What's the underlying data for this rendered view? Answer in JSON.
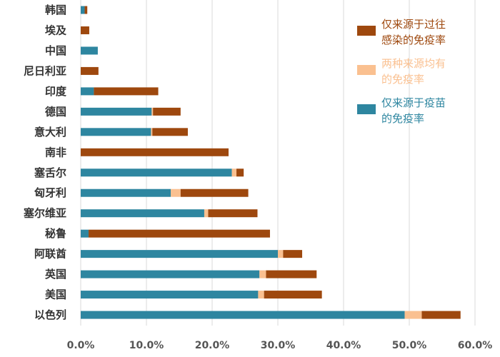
{
  "chart_data": {
    "type": "bar",
    "orientation": "horizontal",
    "stacked": true,
    "categories": [
      "韩国",
      "埃及",
      "中国",
      "尼日利亚",
      "印度",
      "德国",
      "意大利",
      "南非",
      "塞舌尔",
      "匈牙利",
      "塞尔维亚",
      "秘鲁",
      "阿联酋",
      "英国",
      "美国",
      "以色列"
    ],
    "series": [
      {
        "name": "仅来源于疫苗的免疫率",
        "color": "#2e86a0",
        "values": [
          0.6,
          0.0,
          2.6,
          0.0,
          2.0,
          10.8,
          10.7,
          0.0,
          23.0,
          13.7,
          18.8,
          1.2,
          30.0,
          27.2,
          27.0,
          49.3
        ]
      },
      {
        "name": "两种来源均有的免疫率",
        "color": "#fac090",
        "values": [
          0.0,
          0.0,
          0.0,
          0.0,
          0.0,
          0.2,
          0.2,
          0.0,
          0.7,
          1.5,
          0.6,
          0.0,
          0.8,
          1.0,
          0.9,
          2.6
        ]
      },
      {
        "name": "仅来源于过往感染的免疫率",
        "color": "#9e480e",
        "values": [
          0.4,
          1.3,
          0.0,
          2.7,
          9.8,
          4.2,
          5.4,
          22.5,
          1.1,
          10.3,
          7.5,
          27.6,
          2.9,
          7.7,
          8.8,
          5.9
        ]
      }
    ],
    "x_ticks": [
      "0.0%",
      "10.0%",
      "20.0%",
      "30.0%",
      "40.0%",
      "50.0%",
      "60.0%"
    ],
    "xlim": [
      0,
      60
    ],
    "grid": "vertical",
    "legend_position": "right",
    "legend_order": [
      "仅来源于过往感染的免疫率",
      "两种来源均有的免疫率",
      "仅来源于疫苗的免疫率"
    ]
  },
  "legend": {
    "items": [
      {
        "lines": [
          "仅来源于过往",
          "感染的免疫率"
        ],
        "color": "#9e480e"
      },
      {
        "lines": [
          "两种来源均有",
          "的免疫率"
        ],
        "color": "#fac090"
      },
      {
        "lines": [
          "仅来源于疫苗",
          "的免疫率"
        ],
        "color": "#2e86a0"
      }
    ]
  }
}
